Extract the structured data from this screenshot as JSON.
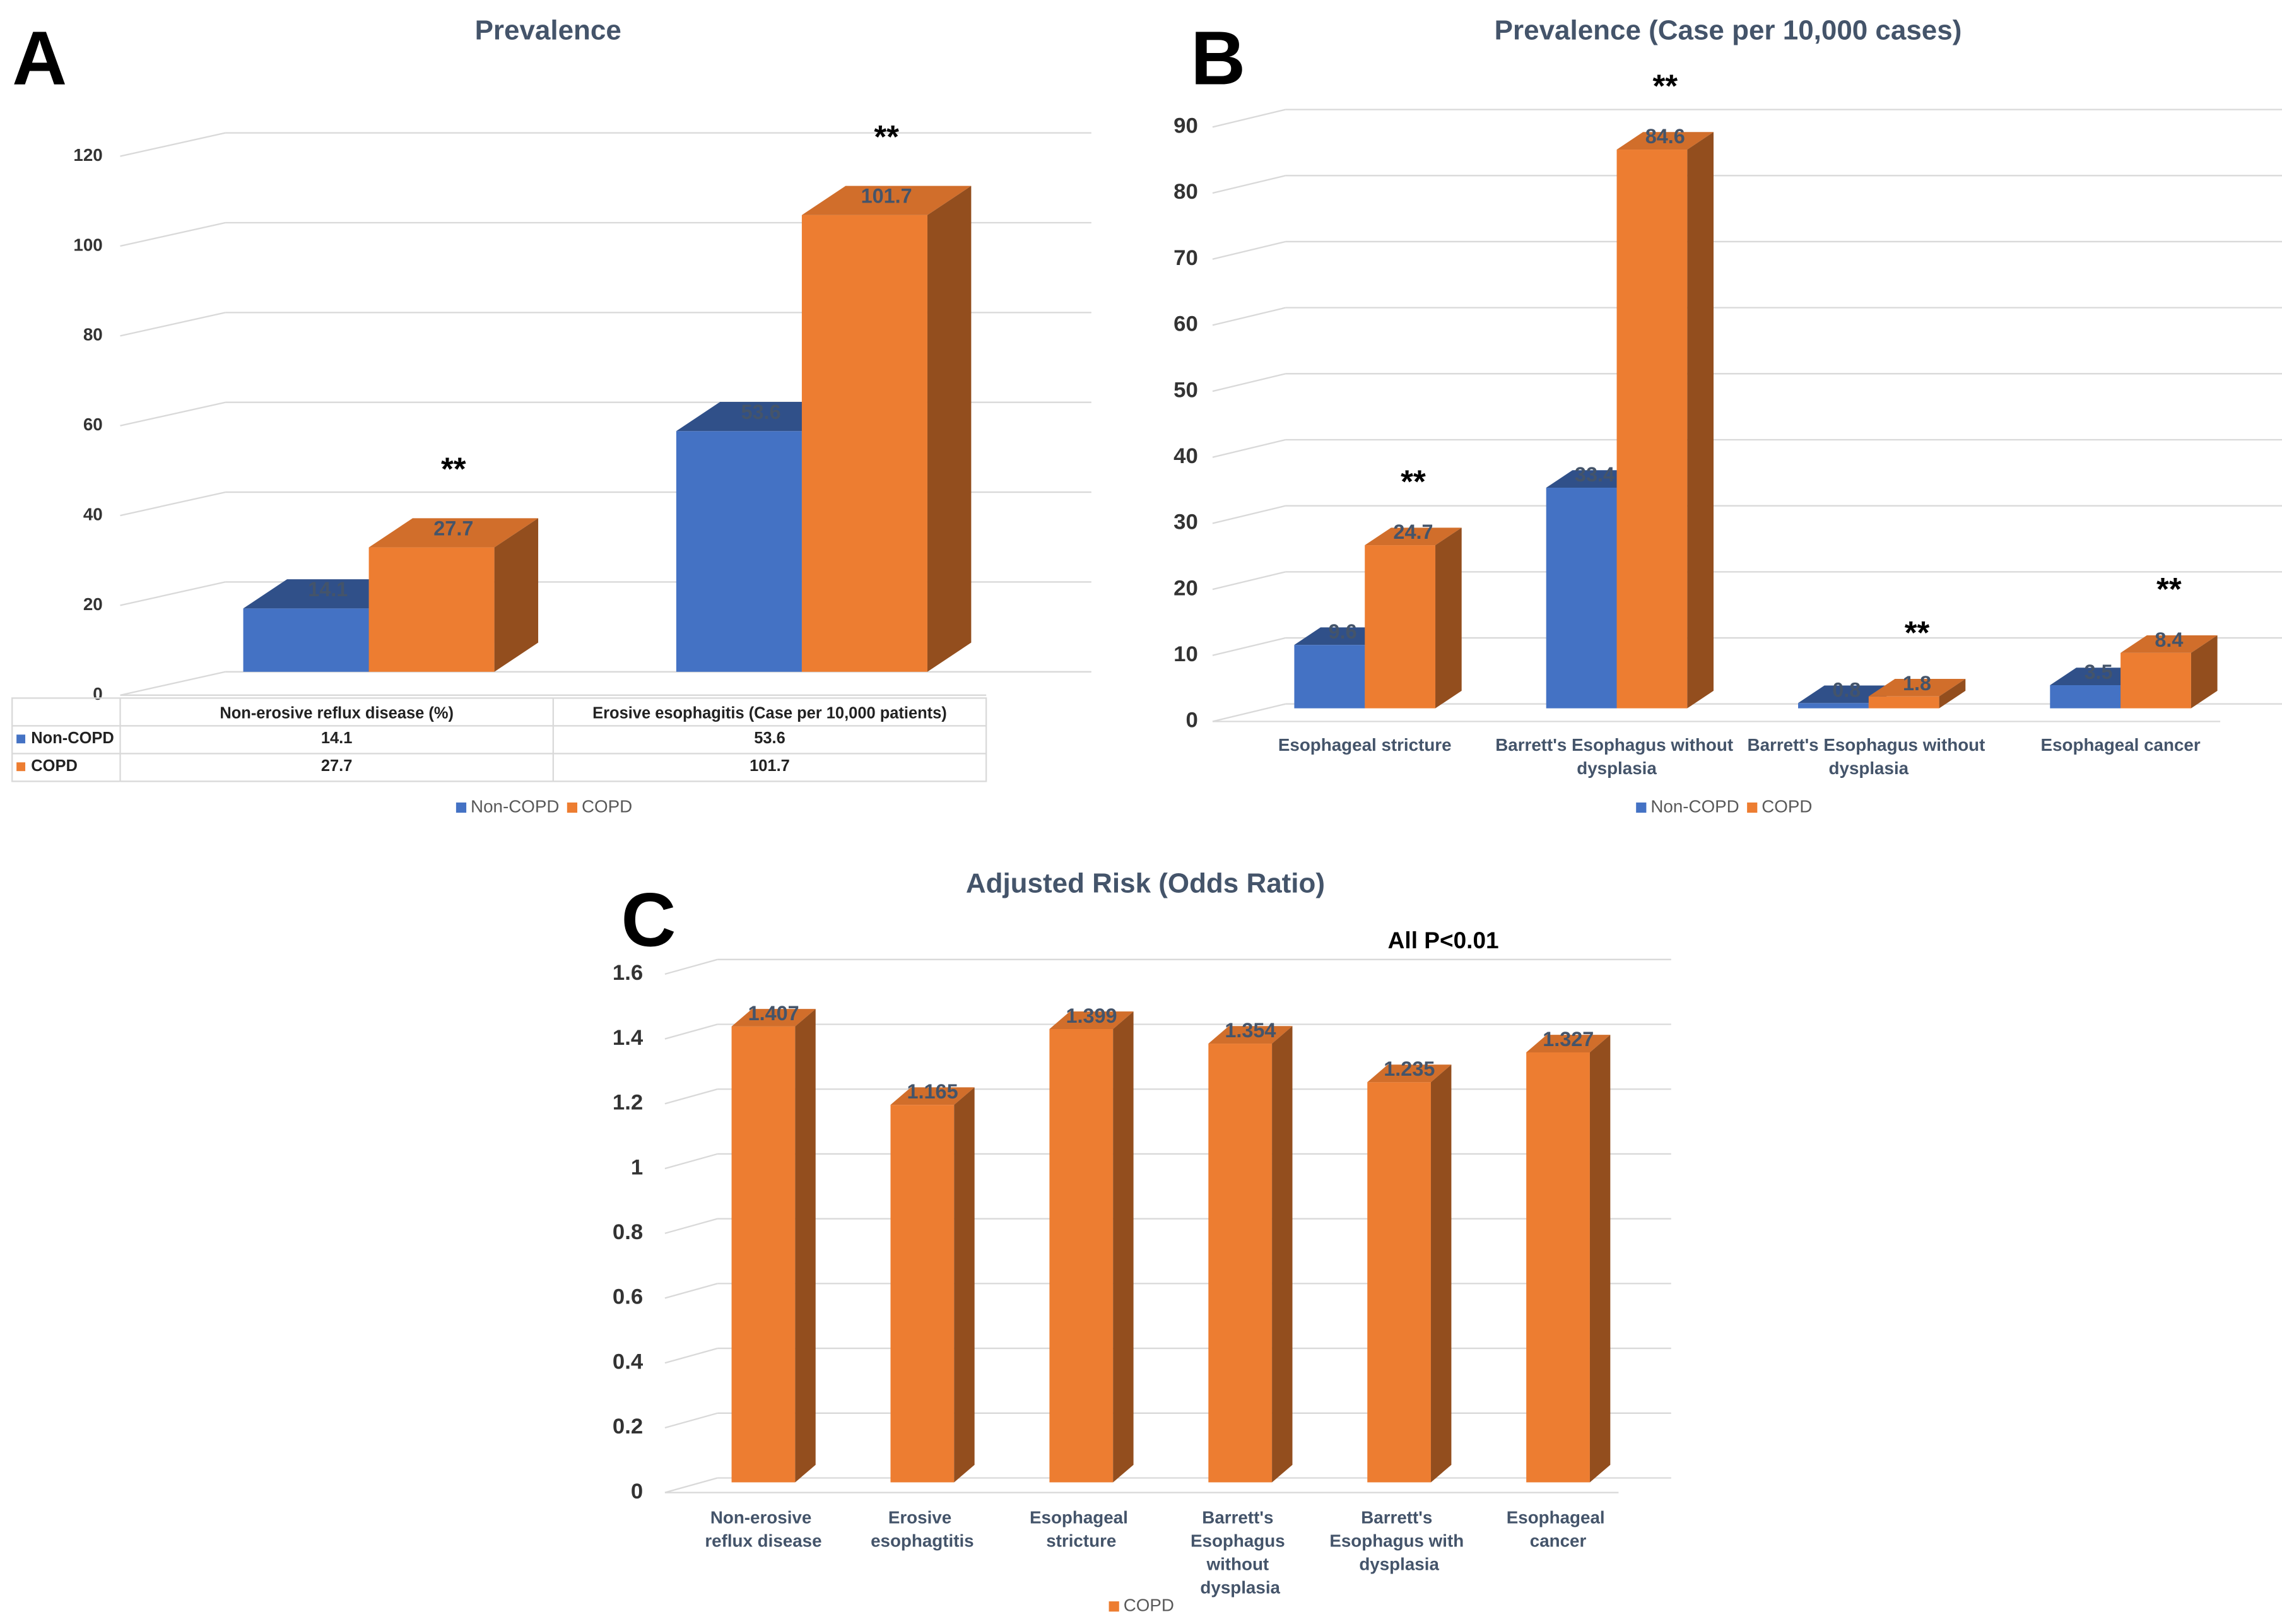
{
  "chart_data": [
    {
      "type": "bar3d",
      "panel": "A",
      "title": "Prevalence",
      "categories": [
        "Non-erosive reflux disease (%)",
        "Erosive esophagitis (Case per 10,000 patients)"
      ],
      "series": [
        {
          "name": "Non-COPD",
          "color": "#4472c4",
          "values": [
            14.1,
            53.6
          ]
        },
        {
          "name": "COPD",
          "color": "#ed7d31",
          "values": [
            27.7,
            101.7
          ]
        }
      ],
      "annotations": [
        "**",
        "**"
      ],
      "data_table": true,
      "ylim": [
        0,
        120
      ],
      "yticks": [
        0,
        20,
        40,
        60,
        80,
        100,
        120
      ],
      "grid": true,
      "legend": "bottom"
    },
    {
      "type": "bar3d",
      "panel": "B",
      "title": "Prevalence (Case per 10,000 cases)",
      "categories": [
        "Esophageal stricture",
        "Barrett's Esophagus without dysplasia",
        "Barrett's Esophagus without dysplasia",
        "Esophageal cancer"
      ],
      "series": [
        {
          "name": "Non-COPD",
          "color": "#4472c4",
          "values": [
            9.6,
            33.4,
            0.8,
            3.5
          ]
        },
        {
          "name": "COPD",
          "color": "#ed7d31",
          "values": [
            24.7,
            84.6,
            1.8,
            8.4
          ]
        }
      ],
      "annotations": [
        "**",
        "**",
        "**",
        "**"
      ],
      "ylim": [
        0,
        90
      ],
      "yticks": [
        0,
        10,
        20,
        30,
        40,
        50,
        60,
        70,
        80,
        90
      ],
      "grid": true,
      "legend": "bottom"
    },
    {
      "type": "bar3d",
      "panel": "C",
      "title": "Adjusted Risk (Odds Ratio)",
      "annotation": "All P<0.01",
      "categories": [
        "Non-erosive reflux disease",
        "Erosive esophagtitis",
        "Esophageal stricture",
        "Barrett's Esophagus without dysplasia",
        "Barrett's Esophagus with dysplasia",
        "Esophageal cancer"
      ],
      "series": [
        {
          "name": "COPD",
          "color": "#ed7d31",
          "values": [
            1.407,
            1.165,
            1.399,
            1.354,
            1.235,
            1.327
          ]
        }
      ],
      "ylim": [
        0,
        1.6
      ],
      "yticks": [
        0,
        0.2,
        0.4,
        0.6,
        0.8,
        1,
        1.2,
        1.4,
        1.6
      ],
      "grid": true,
      "legend": "bottom"
    }
  ]
}
